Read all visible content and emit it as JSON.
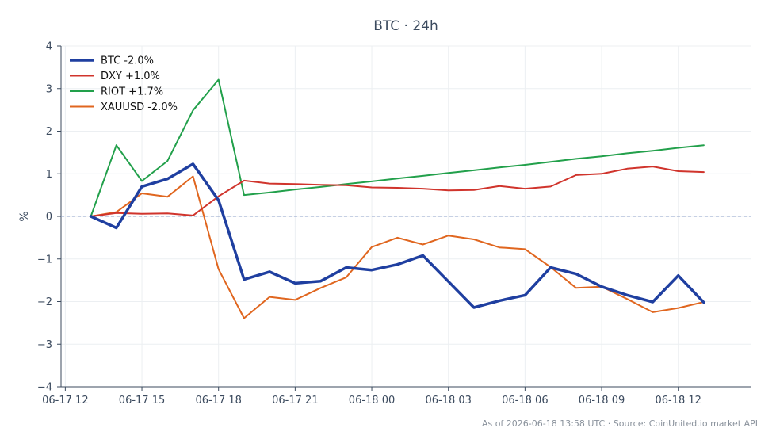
{
  "chart_data": {
    "type": "line",
    "title": "BTC · 24h",
    "xlabel": "",
    "ylabel": "%",
    "ylim": [
      -4,
      4
    ],
    "yticks": [
      4,
      3,
      2,
      1,
      0,
      -1,
      -2,
      -3,
      -4
    ],
    "ytick_labels": [
      "4",
      "3",
      "2",
      "1",
      "0",
      "−1",
      "−2",
      "−3",
      "−4"
    ],
    "xlim": [
      "2026-06-17 11:50",
      "2026-06-18 14:50"
    ],
    "xticks": [
      "2026-06-17 12:00",
      "2026-06-17 15:00",
      "2026-06-17 18:00",
      "2026-06-17 21:00",
      "2026-06-18 00:00",
      "2026-06-18 03:00",
      "2026-06-18 06:00",
      "2026-06-18 09:00",
      "2026-06-18 12:00"
    ],
    "xtick_labels": [
      "06-17 12",
      "06-17 15",
      "06-17 18",
      "06-17 21",
      "06-18 00",
      "06-18 03",
      "06-18 06",
      "06-18 09",
      "06-18 12"
    ],
    "x": [
      "2026-06-17 13:00",
      "2026-06-17 14:00",
      "2026-06-17 15:00",
      "2026-06-17 16:00",
      "2026-06-17 17:00",
      "2026-06-17 18:00",
      "2026-06-17 19:00",
      "2026-06-17 20:00",
      "2026-06-17 21:00",
      "2026-06-17 22:00",
      "2026-06-17 23:00",
      "2026-06-18 00:00",
      "2026-06-18 01:00",
      "2026-06-18 02:00",
      "2026-06-18 03:00",
      "2026-06-18 04:00",
      "2026-06-18 05:00",
      "2026-06-18 06:00",
      "2026-06-18 07:00",
      "2026-06-18 08:00",
      "2026-06-18 09:00",
      "2026-06-18 10:00",
      "2026-06-18 11:00",
      "2026-06-18 12:00",
      "2026-06-18 13:00"
    ],
    "baseline": 0,
    "grid": true,
    "legend_position": "top-left",
    "series": [
      {
        "name": "BTC -2.0%",
        "color": "#1f3fa0",
        "width": 3.5,
        "values": [
          0,
          -0.27,
          0.7,
          0.88,
          1.23,
          0.38,
          -1.48,
          -1.3,
          -1.57,
          -1.52,
          -1.2,
          -1.26,
          -1.13,
          -0.92,
          -1.53,
          -2.14,
          -1.98,
          -1.85,
          -1.2,
          -1.35,
          -1.65,
          -1.85,
          -2.01,
          -1.39,
          -2.02
        ]
      },
      {
        "name": "DXY +1.0%",
        "color": "#d0342c",
        "width": 2,
        "values": [
          0,
          0.08,
          0.06,
          0.07,
          0.02,
          0.47,
          0.84,
          0.77,
          0.76,
          0.74,
          0.73,
          0.68,
          0.67,
          0.65,
          0.61,
          0.62,
          0.71,
          0.65,
          0.7,
          0.97,
          1.0,
          1.12,
          1.17,
          1.06,
          1.04
        ]
      },
      {
        "name": "RIOT +1.7%",
        "color": "#22a04b",
        "width": 2,
        "values": [
          0,
          1.67,
          0.83,
          1.3,
          2.49,
          3.21,
          0.5,
          0.56,
          0.63,
          0.69,
          0.76,
          0.82,
          0.89,
          0.95,
          1.02,
          1.08,
          1.15,
          1.21,
          1.28,
          1.35,
          1.41,
          1.48,
          1.54,
          1.61,
          1.67
        ]
      },
      {
        "name": "XAUUSD -2.0%",
        "color": "#e0661f",
        "width": 2,
        "values": [
          0,
          0.1,
          0.54,
          0.46,
          0.94,
          -1.24,
          -2.39,
          -1.89,
          -1.96,
          -1.68,
          -1.43,
          -0.72,
          -0.5,
          -0.66,
          -0.45,
          -0.54,
          -0.73,
          -0.77,
          -1.19,
          -1.68,
          -1.65,
          -1.94,
          -2.25,
          -2.15,
          -2.01
        ]
      }
    ],
    "footer": "As of 2026-06-18 13:58 UTC · Source: CoinUnited.io market API"
  }
}
